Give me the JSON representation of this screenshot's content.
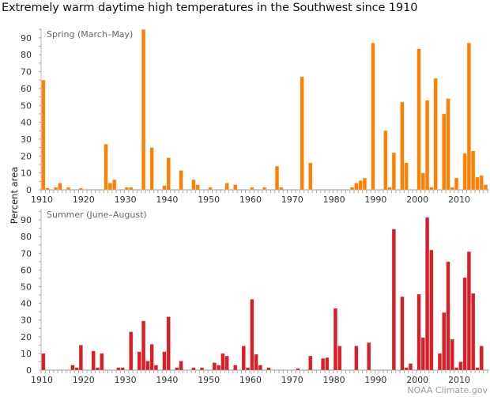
{
  "title": "Extremely warm daytime high temperatures in the Southwest since 1910",
  "ylabel": "Percent area",
  "credit": "NOAA Climate.gov",
  "chart_data": [
    {
      "type": "bar",
      "panel_label": "Spring (March–May)",
      "color": "#ff8000",
      "xlim": [
        1910,
        2016
      ],
      "ylim": [
        0,
        95
      ],
      "yticks": [
        0,
        10,
        20,
        30,
        40,
        50,
        60,
        70,
        80,
        90
      ],
      "xticks": [
        1910,
        1920,
        1930,
        1940,
        1950,
        1960,
        1970,
        1980,
        1990,
        2000,
        2010
      ],
      "xlabel": "",
      "ylabel": "Percent area",
      "x": [
        1910,
        1911,
        1913,
        1914,
        1916,
        1919,
        1925,
        1926,
        1927,
        1930,
        1931,
        1934,
        1936,
        1939,
        1940,
        1943,
        1946,
        1947,
        1950,
        1954,
        1956,
        1960,
        1963,
        1966,
        1967,
        1972,
        1974,
        1984,
        1985,
        1986,
        1987,
        1989,
        1992,
        1993,
        1994,
        1996,
        1997,
        2000,
        2001,
        2002,
        2003,
        2004,
        2006,
        2007,
        2008,
        2009,
        2011,
        2012,
        2013,
        2014,
        2015,
        2016
      ],
      "values": [
        65,
        1,
        1.5,
        4,
        1.5,
        1,
        27,
        4,
        6,
        1.5,
        1.5,
        95,
        25,
        2.5,
        19,
        11.5,
        6,
        3,
        1.5,
        4,
        3,
        1.5,
        1.5,
        14,
        1.5,
        67,
        16,
        1.5,
        4,
        5.5,
        7,
        87,
        35,
        1.5,
        22,
        52,
        16,
        83.5,
        10,
        53,
        1.5,
        66,
        45,
        54,
        1.5,
        7,
        21.5,
        87,
        23,
        7.5,
        8.5,
        3
      ]
    },
    {
      "type": "bar",
      "panel_label": "Summer (June–August)",
      "color": "#d62027",
      "xlim": [
        1910,
        2016
      ],
      "ylim": [
        0,
        95
      ],
      "yticks": [
        0,
        10,
        20,
        30,
        40,
        50,
        60,
        70,
        80,
        90
      ],
      "xticks": [
        1910,
        1920,
        1930,
        1940,
        1950,
        1960,
        1970,
        1980,
        1990,
        2000,
        2010
      ],
      "xlabel": "",
      "ylabel": "Percent area",
      "x": [
        1910,
        1917,
        1918,
        1919,
        1922,
        1923,
        1924,
        1928,
        1929,
        1931,
        1933,
        1934,
        1935,
        1936,
        1937,
        1939,
        1940,
        1942,
        1943,
        1946,
        1948,
        1951,
        1952,
        1953,
        1954,
        1956,
        1958,
        1959,
        1960,
        1961,
        1962,
        1964,
        1971,
        1974,
        1977,
        1978,
        1980,
        1981,
        1985,
        1988,
        1994,
        1996,
        1997,
        1998,
        2000,
        2001,
        2002,
        2003,
        2005,
        2006,
        2007,
        2008,
        2009,
        2010,
        2011,
        2012,
        2013,
        2014,
        2015
      ],
      "values": [
        10,
        3,
        1.5,
        15,
        11.5,
        1.5,
        10,
        1.5,
        1.5,
        23,
        11,
        29.5,
        5.5,
        15.5,
        3,
        11,
        32,
        1.5,
        5.5,
        1.5,
        1.5,
        4.5,
        3,
        10,
        8.5,
        3,
        14.5,
        1.5,
        42.5,
        9.5,
        3,
        1.5,
        1,
        8.5,
        7,
        7.5,
        37,
        14.5,
        14.5,
        16.5,
        84.5,
        44,
        1.5,
        4,
        45.5,
        19.5,
        91.5,
        72,
        10,
        34.5,
        65,
        18.5,
        1.5,
        5,
        55.5,
        71,
        46,
        1.5,
        14.5
      ]
    }
  ]
}
